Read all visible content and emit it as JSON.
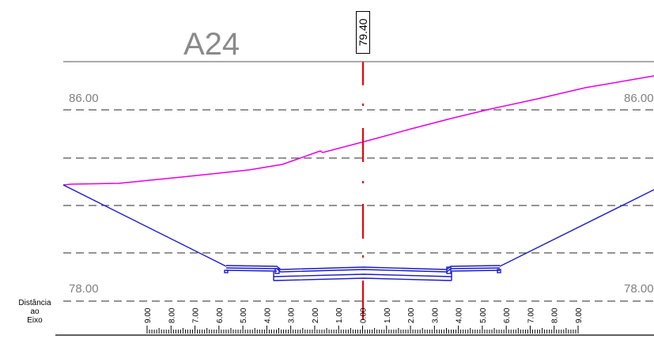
{
  "section": {
    "name": "A24"
  },
  "axis": {
    "station": "79.40"
  },
  "elevations": {
    "top_left": "86.00",
    "top_right": "86.00",
    "bottom_left": "78.00",
    "bottom_right": "78.00"
  },
  "distance_label": {
    "line1": "Distância",
    "line2": "ao",
    "line3": "Eixo"
  },
  "colors": {
    "terrain": "#e600e6",
    "design": "#1a1acc",
    "axis": "#e60000",
    "grid": "#555555"
  },
  "ruler": {
    "ticks": [
      "9.00",
      "8.00",
      "7.00",
      "6.00",
      "5.00",
      "4.00",
      "3.00",
      "2.00",
      "1.00",
      "0.00",
      "1.00",
      "2.00",
      "3.00",
      "4.00",
      "5.00",
      "6.00",
      "7.00",
      "8.00",
      "9.00"
    ]
  }
}
